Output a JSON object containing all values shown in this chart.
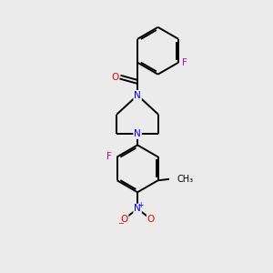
{
  "background_color": "#ebebeb",
  "atom_colors": {
    "C": "#000000",
    "N": "#0000ee",
    "O": "#ee0000",
    "F": "#cc00cc",
    "bond": "#000000"
  },
  "figure_size": [
    3.0,
    3.0
  ],
  "dpi": 100,
  "lw": 1.4,
  "fs": 7.5
}
